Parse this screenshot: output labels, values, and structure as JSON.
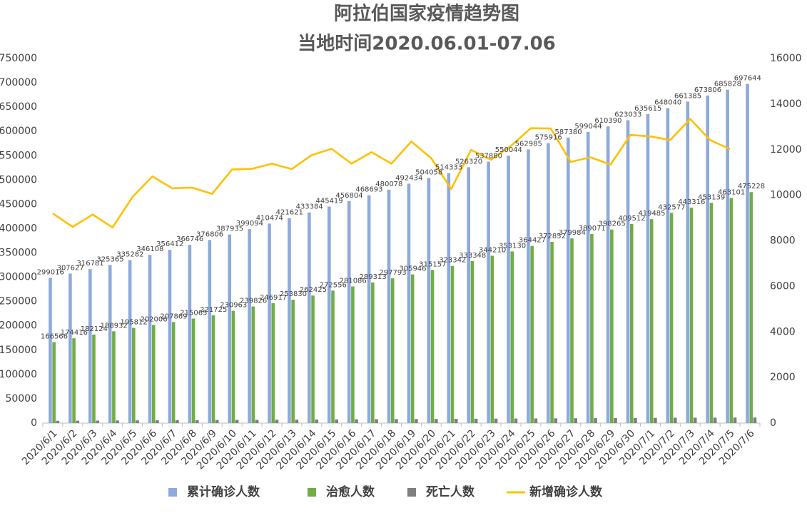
{
  "chart_data": {
    "type": "bar",
    "title": "阿拉伯国家疫情趋势图",
    "subtitle": "当地时间2020.06.01-07.06",
    "categories": [
      "2020/6/1",
      "2020/6/2",
      "2020/6/3",
      "2020/6/4",
      "2020/6/5",
      "2020/6/6",
      "2020/6/7",
      "2020/6/8",
      "2020/6/9",
      "2020/6/10",
      "2020/6/11",
      "2020/6/12",
      "2020/6/13",
      "2020/6/14",
      "2020/6/15",
      "2020/6/16",
      "2020/6/17",
      "2020/6/18",
      "2020/6/19",
      "2020/6/20",
      "2020/6/21",
      "2020/6/22",
      "2020/6/23",
      "2020/6/24",
      "2020/6/25",
      "2020/6/26",
      "2020/6/27",
      "2020/6/28",
      "2020/6/29",
      "2020/6/30",
      "2020/7/1",
      "2020/7/2",
      "2020/7/3",
      "2020/7/4",
      "2020/7/5",
      "2020/7/6"
    ],
    "series": [
      {
        "name": "累计确诊人数",
        "color": "#8eaadb",
        "type": "bar",
        "labels": true,
        "values": [
          299016,
          307627,
          316781,
          325365,
          335282,
          346108,
          356412,
          366746,
          376806,
          387935,
          399094,
          410474,
          421621,
          433384,
          445419,
          456804,
          468693,
          480078,
          492434,
          504058,
          514333,
          526320,
          537880,
          550044,
          562985,
          575916,
          587380,
          599044,
          610390,
          623033,
          635615,
          648040,
          661385,
          673806,
          685828,
          697644
        ]
      },
      {
        "name": "治愈人数",
        "color": "#70ad47",
        "type": "bar",
        "labels": true,
        "values": [
          166566,
          174416,
          182124,
          188932,
          195812,
          202006,
          207869,
          215065,
          221725,
          230963,
          239826,
          246917,
          253830,
          262425,
          272556,
          281086,
          289313,
          297793,
          305946,
          315157,
          323342,
          333348,
          344210,
          353130,
          364427,
          372852,
          379984,
          389071,
          398265,
          409512,
          419485,
          432577,
          443316,
          453139,
          463101,
          475228
        ]
      },
      {
        "name": "死亡人数",
        "color": "#7f7f7f",
        "type": "bar",
        "labels": false,
        "values": [
          4800,
          5000,
          5200,
          5400,
          5600,
          5800,
          6000,
          6200,
          6400,
          6600,
          6800,
          7000,
          7200,
          7400,
          7600,
          7800,
          8000,
          8200,
          8400,
          8600,
          8800,
          9000,
          9200,
          9400,
          9600,
          9800,
          10000,
          10200,
          10400,
          10600,
          10800,
          11000,
          11200,
          11300,
          11400,
          11500
        ]
      },
      {
        "name": "新增确诊人数",
        "color": "#ffc000",
        "type": "line",
        "axis": "y2",
        "labels": false,
        "values": [
          9200,
          8611,
          9154,
          8584,
          9917,
          10826,
          10304,
          10334,
          10060,
          11129,
          11159,
          11380,
          11147,
          11763,
          12035,
          11385,
          11889,
          11385,
          12356,
          11624,
          10275,
          11987,
          11560,
          12164,
          12941,
          12931,
          11464,
          11664,
          11346,
          12643,
          12582,
          12425,
          13345,
          12421,
          12022,
          null
        ]
      }
    ],
    "ylim": [
      0,
      750000
    ],
    "yticks": [
      0,
      50000,
      100000,
      150000,
      200000,
      250000,
      300000,
      350000,
      400000,
      450000,
      500000,
      550000,
      600000,
      650000,
      700000,
      750000
    ],
    "y2lim": [
      0,
      16000
    ],
    "y2ticks": [
      0,
      2000,
      4000,
      6000,
      8000,
      10000,
      12000,
      14000,
      16000
    ],
    "grid": false,
    "legend": "bottom"
  }
}
